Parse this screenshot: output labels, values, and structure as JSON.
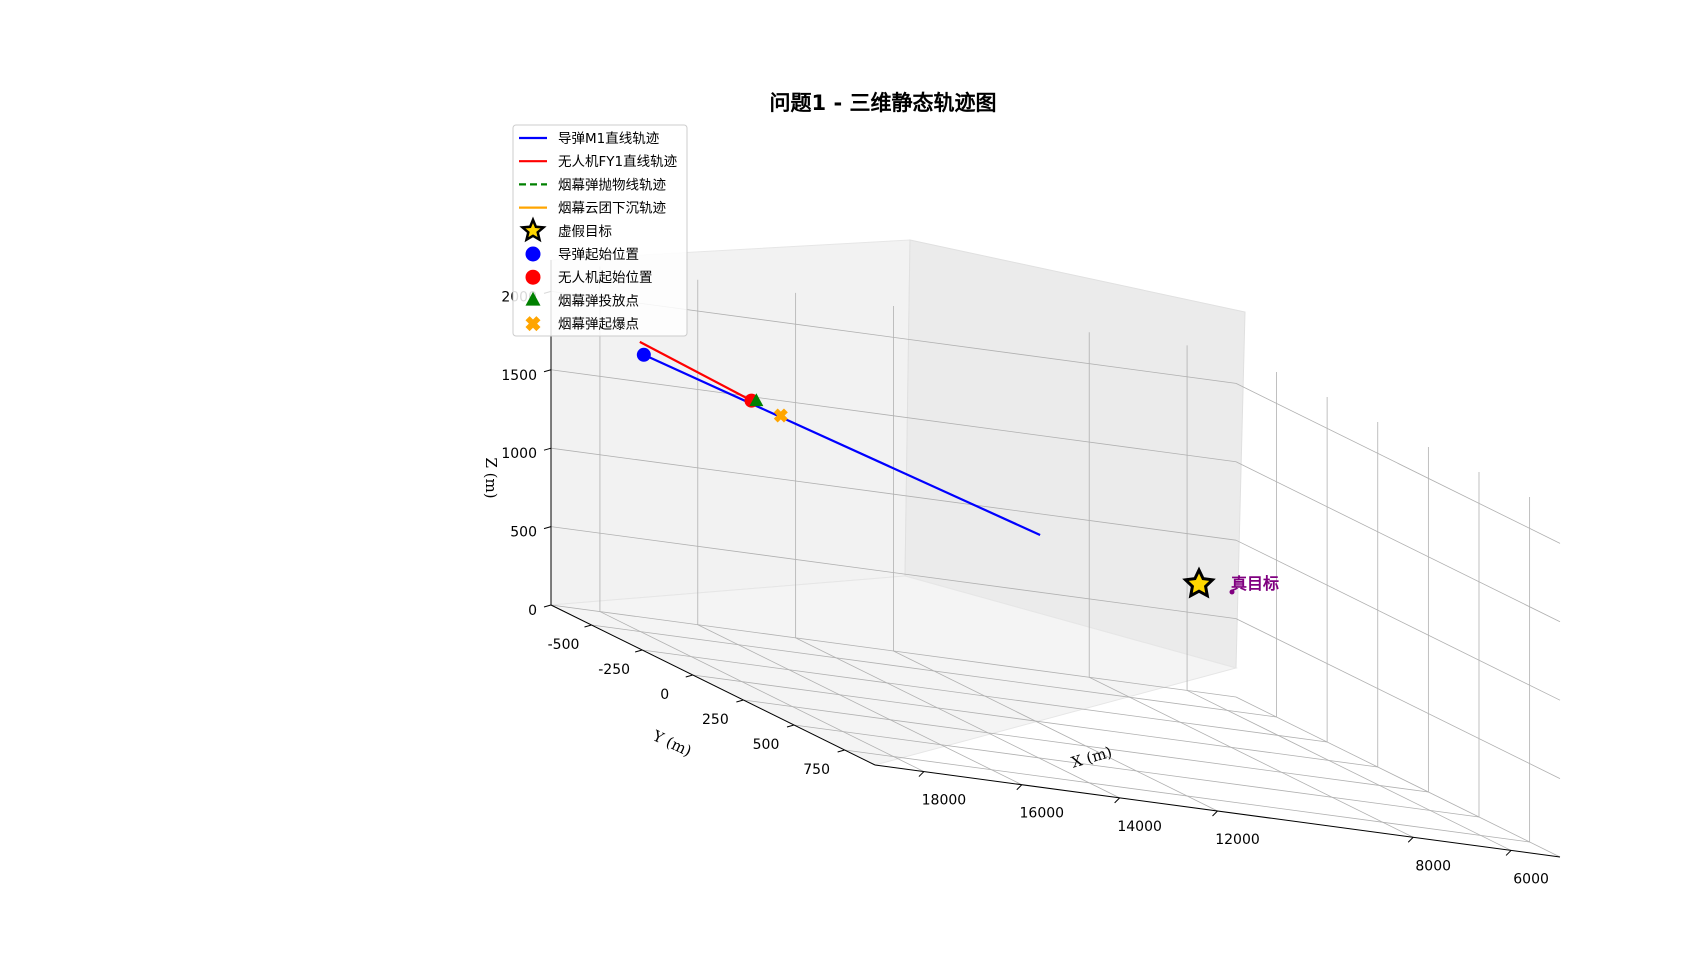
{
  "colors": {
    "missile": "#0000ff",
    "drone": "#ff0000",
    "parabola": "#008000",
    "cloud": "#ffa500",
    "fake_target": "#ffd700",
    "true_target": "#800080"
  },
  "chart_data": {
    "type": "line3d",
    "title": "问题1 - 三维静态轨迹图",
    "xlabel": "X (m)",
    "ylabel": "Y (m)",
    "zlabel": "Z (m)",
    "xlim": [
      5000,
      19000
    ],
    "ylim": [
      -700,
      900
    ],
    "zlim": [
      0,
      2200
    ],
    "x_ticks": [
      6000,
      8000,
      12000,
      14000,
      16000,
      18000
    ],
    "x_tick_labels": [
      "6000",
      "8000",
      "12000",
      "14000",
      "16000",
      "18000"
    ],
    "y_ticks": [
      -500,
      -250,
      0,
      250,
      500,
      750
    ],
    "y_tick_labels": [
      "-500",
      "-250",
      "0",
      "250",
      "500",
      "750"
    ],
    "z_ticks": [
      0,
      500,
      1000,
      1500,
      2000
    ],
    "z_tick_labels": [
      "0",
      "500",
      "1000",
      "1500",
      "2000"
    ],
    "grid": true,
    "legend_position": "top-left",
    "series": [
      {
        "name": "导弹M1直线轨迹",
        "kind": "line",
        "style": "solid",
        "color": "#0000ff",
        "points": [
          [
            20000,
            0,
            2000
          ],
          [
            11900,
            0,
            1190
          ]
        ]
      },
      {
        "name": "无人机FY1直线轨迹",
        "kind": "line",
        "style": "solid",
        "color": "#ff0000",
        "points": [
          [
            17800,
            0,
            1800
          ],
          [
            17600,
            -600,
            1800
          ]
        ]
      },
      {
        "name": "烟幕弹抛物线轨迹",
        "kind": "line",
        "style": "dashed",
        "color": "#008000",
        "points": []
      },
      {
        "name": "烟幕云团下沉轨迹",
        "kind": "line",
        "style": "solid",
        "color": "#ffa500",
        "points": []
      },
      {
        "name": "虚假目标",
        "kind": "marker",
        "marker": "star",
        "color": "#ffd700",
        "points": []
      },
      {
        "name": "导弹起始位置",
        "kind": "marker",
        "marker": "circle",
        "color": "#0000ff",
        "points": [
          [
            20000,
            0,
            2000
          ]
        ]
      },
      {
        "name": "无人机起始位置",
        "kind": "marker",
        "marker": "circle",
        "color": "#ff0000",
        "points": [
          [
            17800,
            0,
            1800
          ]
        ]
      },
      {
        "name": "烟幕弹投放点",
        "kind": "marker",
        "marker": "triangle",
        "color": "#008000",
        "points": [
          [
            17700,
            0,
            1800
          ]
        ]
      },
      {
        "name": "烟幕弹起爆点",
        "kind": "marker",
        "marker": "x",
        "color": "#ffa500",
        "points": [
          [
            17200,
            0,
            1730
          ]
        ]
      }
    ],
    "annotations": [
      {
        "text": "真目标",
        "color": "#800080",
        "point": [
          5000,
          200,
          0
        ]
      }
    ]
  }
}
